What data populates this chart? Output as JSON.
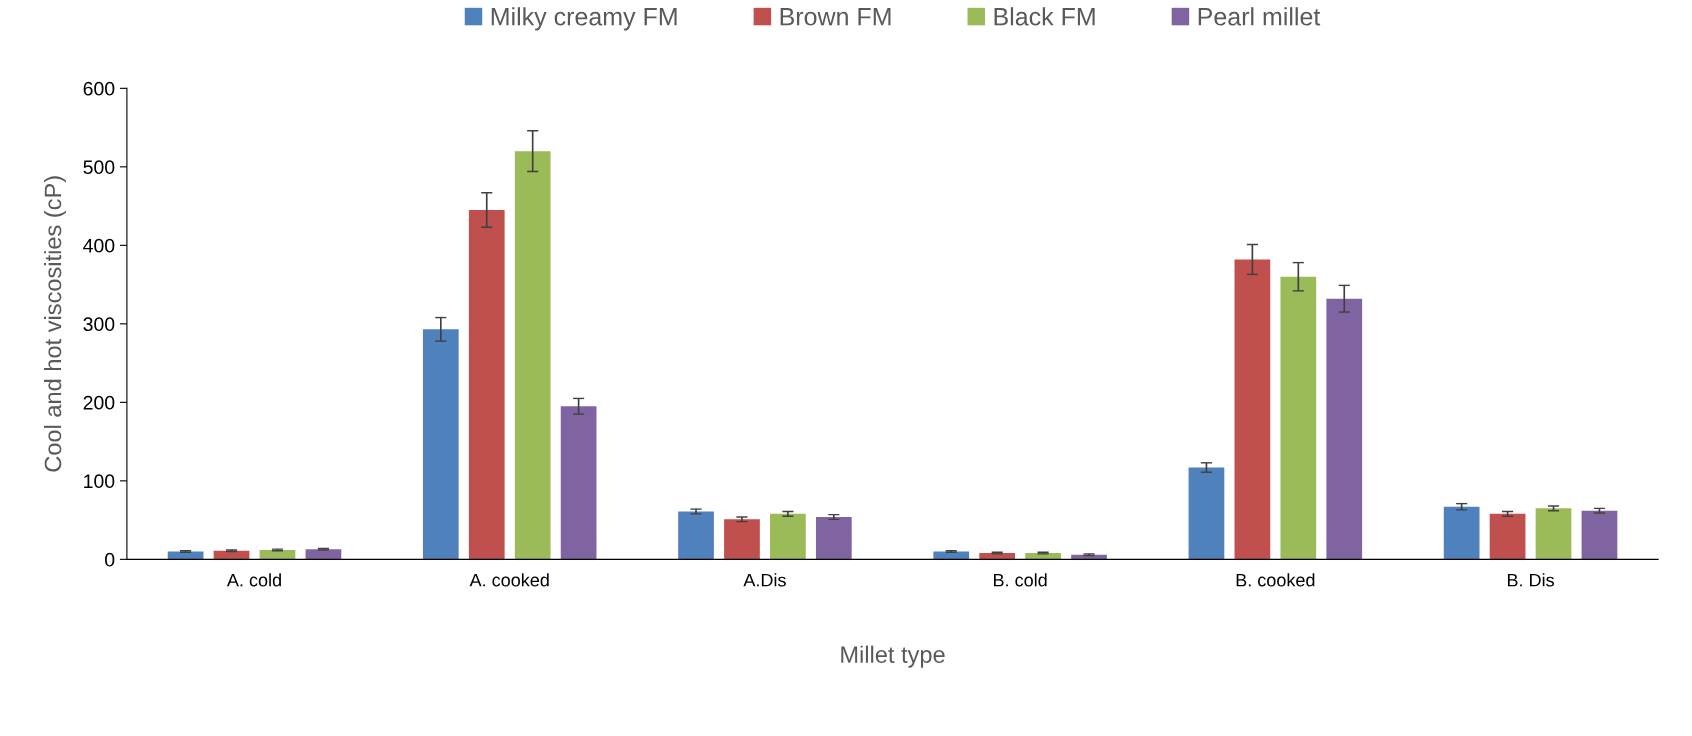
{
  "chart_data": {
    "type": "bar",
    "xlabel": "Millet type",
    "ylabel": "Cool and hot viscosities (cP)",
    "categories": [
      "A. cold",
      "A. cooked",
      "A.Dis",
      "B. cold",
      "B. cooked",
      "B. Dis"
    ],
    "series": [
      {
        "name": "Milky creamy FM",
        "color": "#4f81bd",
        "values": [
          10,
          293,
          61,
          10,
          117,
          67
        ],
        "errors": [
          1,
          15,
          3,
          1,
          6,
          4
        ]
      },
      {
        "name": "Brown FM",
        "color": "#c0504d",
        "values": [
          11,
          445,
          51,
          8,
          382,
          58
        ],
        "errors": [
          1,
          22,
          3,
          1,
          19,
          3
        ]
      },
      {
        "name": "Black FM",
        "color": "#9bbb59",
        "values": [
          12,
          520,
          58,
          8,
          360,
          65
        ],
        "errors": [
          1,
          26,
          3,
          1,
          18,
          3
        ]
      },
      {
        "name": "Pearl millet",
        "color": "#8064a2",
        "values": [
          13,
          195,
          54,
          6,
          332,
          62
        ],
        "errors": [
          1,
          10,
          3,
          1,
          17,
          3
        ]
      }
    ],
    "ylim": [
      0,
      600
    ],
    "yticks": [
      0,
      100,
      200,
      300,
      400,
      500,
      600
    ],
    "grid": false,
    "legend": "top"
  }
}
